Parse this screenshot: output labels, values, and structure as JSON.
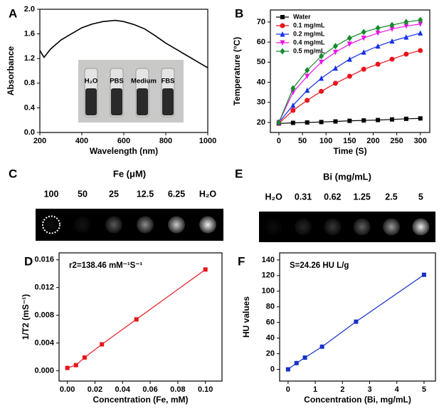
{
  "chart_data": [
    {
      "type": "line",
      "label": "A",
      "xlabel": "Wavelength (nm)",
      "ylabel": "Absorbance",
      "color": "#000000",
      "x": [
        200,
        220,
        250,
        300,
        350,
        400,
        450,
        500,
        560,
        600,
        650,
        700,
        750,
        800,
        850,
        900,
        950,
        1000
      ],
      "values": [
        1.33,
        1.22,
        1.35,
        1.5,
        1.6,
        1.7,
        1.76,
        1.8,
        1.82,
        1.8,
        1.75,
        1.68,
        1.57,
        1.45,
        1.35,
        1.25,
        1.15,
        1.05
      ],
      "xlim": [
        200,
        1000
      ],
      "xticks": [
        200,
        400,
        600,
        800,
        1000
      ],
      "ylim": [
        0,
        2
      ],
      "yticks": [
        {
          "value": 0,
          "label": "0.0"
        },
        {
          "value": 0.4,
          "label": "0.4"
        },
        {
          "value": 0.8,
          "label": "0.8"
        },
        {
          "value": 1.2,
          "label": "1.2"
        },
        {
          "value": 1.6,
          "label": "1.6"
        },
        {
          "value": 2,
          "label": "2.0"
        }
      ],
      "inset_labels": [
        "H₂O",
        "PBS",
        "Medium",
        "FBS"
      ]
    },
    {
      "type": "line",
      "label": "B",
      "xlabel": "Time (S)",
      "ylabel": "Temperature (°C)",
      "legend": "upper left",
      "x": [
        0,
        30,
        60,
        90,
        120,
        150,
        180,
        210,
        240,
        270,
        300
      ],
      "series": [
        {
          "name": "Water",
          "color": "#000000",
          "marker": "square",
          "values": [
            19.5,
            19.8,
            20,
            20.2,
            20.5,
            20.8,
            21,
            21.2,
            21.5,
            21.8,
            22
          ]
        },
        {
          "name": "0.1 mg/mL",
          "color": "#e8141b",
          "marker": "circle",
          "values": [
            19.5,
            26,
            31,
            35.5,
            39.5,
            43,
            46.5,
            49,
            51.5,
            54,
            55.8
          ]
        },
        {
          "name": "0.2 mg/mL",
          "color": "#1430e8",
          "marker": "triangle",
          "values": [
            20,
            28.5,
            36,
            42,
            47,
            51.5,
            55,
            58,
            60.5,
            62.5,
            64.5
          ]
        },
        {
          "name": "0.4 mg/mL",
          "color": "#e814e8",
          "marker": "tri-down",
          "values": [
            20,
            35,
            43,
            50,
            55,
            59,
            62,
            64.5,
            66.5,
            68,
            69
          ]
        },
        {
          "name": "0.5 mg/mL",
          "color": "#148a2a",
          "marker": "diamond",
          "values": [
            20,
            37,
            46,
            53,
            58,
            62,
            65,
            67,
            68.5,
            70,
            71
          ]
        }
      ],
      "xlim": [
        -18,
        320
      ],
      "xticks": [
        0,
        50,
        100,
        150,
        200,
        250,
        300
      ],
      "ylim": [
        15,
        76
      ],
      "yticks": [
        20,
        30,
        40,
        50,
        60,
        70
      ]
    },
    {
      "type": "image",
      "label": "C",
      "title": "Fe (μM)",
      "categories": [
        "100",
        "50",
        "25",
        "12.5",
        "6.25",
        "H₂O"
      ]
    },
    {
      "type": "scatter",
      "label": "D",
      "xlabel": "Concentration (Fe, mM)",
      "ylabel": "1/T2 (mS⁻¹)",
      "annotation": "r2=138.46 mM⁻¹S⁻¹",
      "color": "#e8141b",
      "x": [
        0,
        0.00625,
        0.0125,
        0.025,
        0.05,
        0.1
      ],
      "values": [
        0.0004,
        0.0008,
        0.0019,
        0.0038,
        0.0074,
        0.0146
      ],
      "xlim": [
        -0.006,
        0.112
      ],
      "xticks": [
        {
          "value": 0,
          "label": "0.00"
        },
        {
          "value": 0.02,
          "label": "0.02"
        },
        {
          "value": 0.04,
          "label": "0.04"
        },
        {
          "value": 0.06,
          "label": "0.06"
        },
        {
          "value": 0.08,
          "label": "0.08"
        },
        {
          "value": 0.1,
          "label": "0.10"
        }
      ],
      "ylim": [
        -0.0015,
        0.017
      ],
      "yticks": [
        {
          "value": 0,
          "label": "0.000"
        },
        {
          "value": 0.004,
          "label": "0.004"
        },
        {
          "value": 0.008,
          "label": "0.008"
        },
        {
          "value": 0.012,
          "label": "0.012"
        },
        {
          "value": 0.016,
          "label": "0.016"
        }
      ]
    },
    {
      "type": "image",
      "label": "E",
      "title": "Bi (mg/mL)",
      "categories": [
        "H₂O",
        "0.31",
        "0.62",
        "1.25",
        "2.5",
        "5"
      ]
    },
    {
      "type": "scatter",
      "label": "F",
      "xlabel": "Concentration (Bi, mg/mL)",
      "ylabel": "HU values",
      "annotation": "S=24.26 HU L/g",
      "color": "#1430c8",
      "x": [
        0,
        0.31,
        0.62,
        1.25,
        2.5,
        5
      ],
      "values": [
        0,
        8,
        15,
        29,
        61,
        121
      ],
      "xlim": [
        -0.31,
        5.42
      ],
      "xticks": [
        0,
        1,
        2,
        3,
        4,
        5
      ],
      "ylim": [
        -15,
        149
      ],
      "yticks": [
        0,
        20,
        40,
        60,
        80,
        100,
        120,
        140
      ]
    }
  ]
}
